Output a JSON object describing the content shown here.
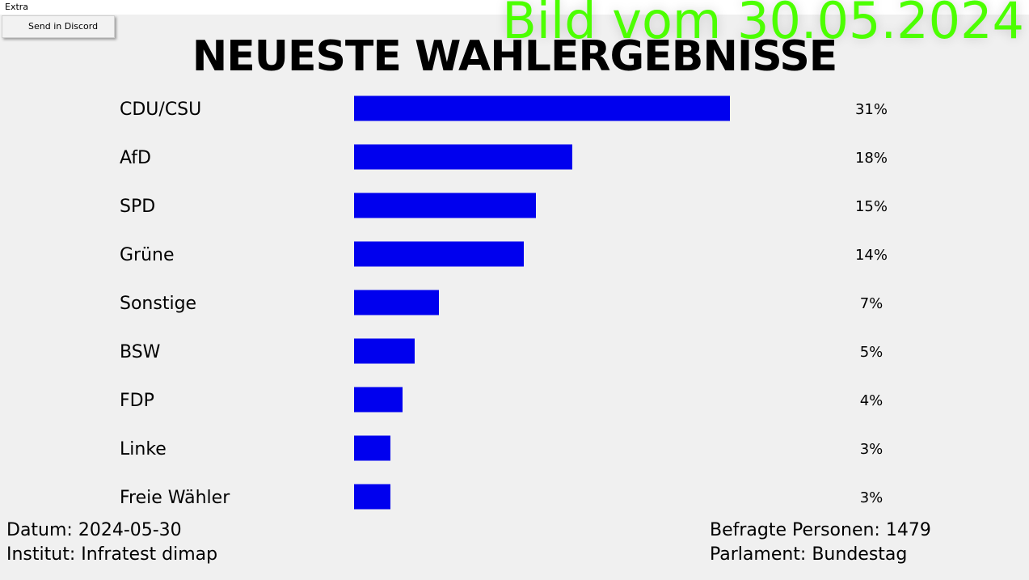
{
  "menu": {
    "extra_label": "Extra",
    "send_discord_label": "Send in Discord"
  },
  "stamp": {
    "text": "Bild vom 30.05.2024",
    "color": "#4cff00"
  },
  "title": "NEUESTE WAHLERGEBNISSE",
  "colors": {
    "bar": "#0000ee",
    "background": "#f0f0f0"
  },
  "chart_data": {
    "type": "bar",
    "orientation": "horizontal",
    "categories": [
      "CDU/CSU",
      "AfD",
      "SPD",
      "Grüne",
      "Sonstige",
      "BSW",
      "FDP",
      "Linke",
      "Freie Wähler"
    ],
    "values": [
      31,
      18,
      15,
      14,
      7,
      5,
      4,
      3,
      3
    ],
    "value_labels": [
      "31%",
      "18%",
      "15%",
      "14%",
      "7%",
      "5%",
      "4%",
      "3%",
      "3%"
    ],
    "xlim": [
      0,
      31
    ],
    "grid": false,
    "legend": "none"
  },
  "footer": {
    "datum": "Datum: 2024-05-30",
    "institut": "Institut: Infratest dimap",
    "befragte": "Befragte Personen: 1479",
    "parlament": "Parlament: Bundestag"
  }
}
